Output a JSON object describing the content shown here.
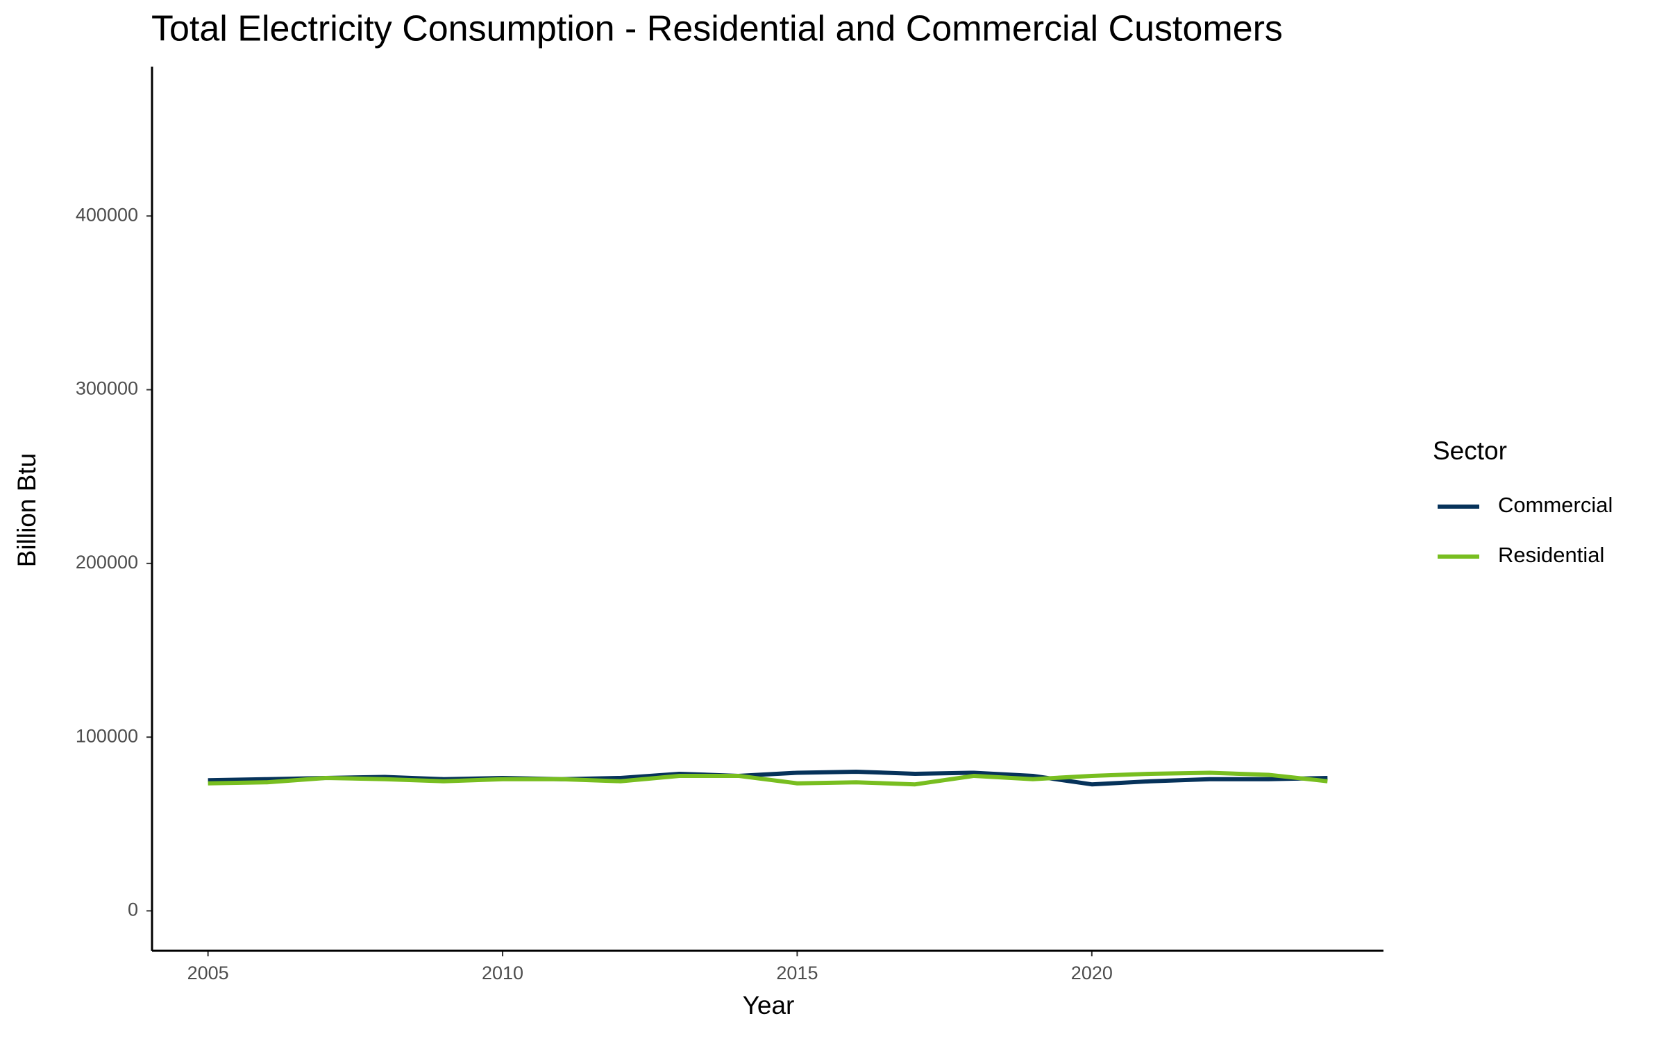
{
  "chart_data": {
    "type": "line",
    "title": "Total Electricity Consumption - Residential and Commercial Customers",
    "x_label": "Year",
    "y_label": "Billion Btu",
    "x": [
      2005,
      2006,
      2007,
      2008,
      2009,
      2010,
      2011,
      2012,
      2013,
      2014,
      2015,
      2016,
      2017,
      2018,
      2019,
      2020,
      2021,
      2022,
      2023,
      2024
    ],
    "series": [
      {
        "name": "Commercial",
        "color": "#06325a",
        "values": [
          75200,
          75800,
          76500,
          77100,
          75800,
          76500,
          75800,
          76500,
          78900,
          77700,
          79500,
          80100,
          78900,
          79500,
          77700,
          72800,
          74600,
          75800,
          75800,
          76500
        ]
      },
      {
        "name": "Residential",
        "color": "#78be20",
        "values": [
          73400,
          74000,
          76500,
          75800,
          74600,
          75800,
          75800,
          74600,
          77700,
          77700,
          73400,
          74000,
          72800,
          77700,
          75800,
          77700,
          78900,
          79500,
          78300,
          74600
        ]
      }
    ],
    "legend_title": "Sector",
    "legend": "right",
    "xlim": [
      2004.05,
      2024.95
    ],
    "xticks": [
      2005,
      2010,
      2015,
      2020
    ],
    "ylim": [
      -23000,
      486000
    ],
    "yticks": [
      0,
      100000,
      200000,
      300000,
      400000
    ],
    "grid": false
  }
}
